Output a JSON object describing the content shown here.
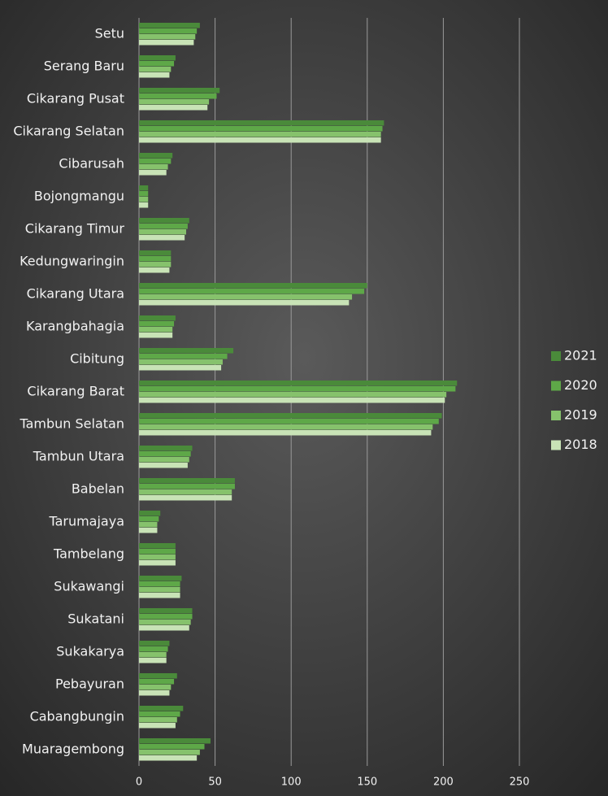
{
  "chart_data": {
    "type": "hbar",
    "categories": [
      "Setu",
      "Serang Baru",
      "Cikarang Pusat",
      "Cikarang Selatan",
      "Cibarusah",
      "Bojongmangu",
      "Cikarang Timur",
      "Kedungwaringin",
      "Cikarang Utara",
      "Karangbahagia",
      "Cibitung",
      "Cikarang Barat",
      "Tambun Selatan",
      "Tambun Utara",
      "Babelan",
      "Tarumajaya",
      "Tambelang",
      "Sukawangi",
      "Sukatani",
      "Sukakarya",
      "Pebayuran",
      "Cabangbungin",
      "Muaragembong"
    ],
    "series": [
      {
        "name": "2021",
        "color": "#4a8a3a",
        "values": [
          40,
          24,
          53,
          161,
          22,
          6,
          33,
          21,
          150,
          24,
          62,
          209,
          199,
          35,
          63,
          14,
          24,
          28,
          35,
          20,
          25,
          29,
          47
        ]
      },
      {
        "name": "2020",
        "color": "#5ea848",
        "values": [
          38,
          23,
          51,
          160,
          21,
          6,
          32,
          21,
          148,
          23,
          58,
          208,
          197,
          34,
          63,
          13,
          24,
          27,
          35,
          19,
          23,
          27,
          43
        ]
      },
      {
        "name": "2019",
        "color": "#86c26c",
        "values": [
          37,
          21,
          46,
          159,
          19,
          6,
          31,
          21,
          140,
          22,
          55,
          202,
          193,
          33,
          61,
          12,
          24,
          27,
          34,
          18,
          21,
          25,
          40
        ]
      },
      {
        "name": "2018",
        "color": "#c8e3b6",
        "values": [
          36,
          20,
          45,
          159,
          18,
          6,
          30,
          20,
          138,
          22,
          54,
          201,
          192,
          32,
          61,
          12,
          24,
          27,
          33,
          18,
          20,
          24,
          38
        ]
      }
    ],
    "xlim": [
      0,
      250
    ],
    "xticks": [
      0,
      50,
      100,
      150,
      200,
      250
    ],
    "grid": true,
    "legend": "right"
  }
}
